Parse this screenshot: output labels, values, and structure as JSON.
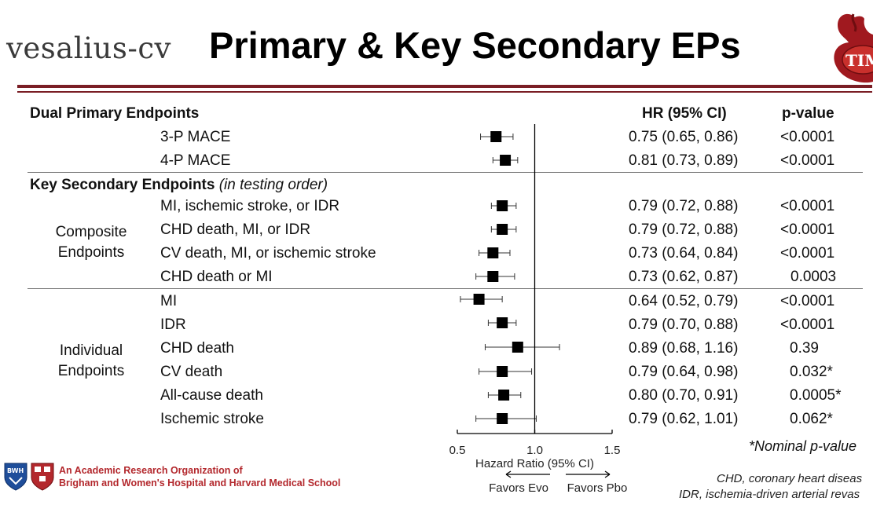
{
  "logo_text": "vesalius-cv",
  "title": "Primary & Key Secondary EPs",
  "timi_label": "TIMI",
  "headers": {
    "dual_primary": "Dual Primary Endpoints",
    "hr": "HR (95% CI)",
    "pvalue": "p-value",
    "key_secondary": "Key Secondary Endpoints",
    "key_secondary_note": "(in testing order)"
  },
  "groups": {
    "composite_line1": "Composite",
    "composite_line2": "Endpoints",
    "individual_line1": "Individual",
    "individual_line2": "Endpoints"
  },
  "nominal_note": "*Nominal p-value",
  "footer": {
    "line1": "An Academic Research Organization of",
    "line2": "Brigham and Women's Hospital and Harvard Medical School",
    "bwh": "BWH"
  },
  "abbreviations": {
    "line1": "CHD, coronary heart diseas",
    "line2": "IDR, ischemia-driven arterial revas"
  },
  "chart_data": {
    "type": "forest",
    "title": "Primary & Key Secondary EPs",
    "xlabel": "Hazard Ratio (95% CI)",
    "x_ticks": [
      0.5,
      1.0,
      1.5
    ],
    "x_tick_labels": [
      "0.5",
      "1.0",
      "1.5"
    ],
    "xlim": [
      0.5,
      1.5
    ],
    "reference_line": 1.0,
    "favors_left": "Favors Evo",
    "favors_right": "Favors Pbo",
    "rows": [
      {
        "label": "3-P MACE",
        "hr": 0.75,
        "lo": 0.65,
        "hi": 0.86,
        "hr_text": "0.75 (0.65, 0.86)",
        "p": "<0.0001"
      },
      {
        "label": "4-P MACE",
        "hr": 0.81,
        "lo": 0.73,
        "hi": 0.89,
        "hr_text": "0.81 (0.73, 0.89)",
        "p": "<0.0001"
      },
      {
        "label": "MI, ischemic stroke, or IDR",
        "hr": 0.79,
        "lo": 0.72,
        "hi": 0.88,
        "hr_text": "0.79 (0.72, 0.88)",
        "p": "<0.0001"
      },
      {
        "label": "CHD death, MI, or IDR",
        "hr": 0.79,
        "lo": 0.72,
        "hi": 0.88,
        "hr_text": "0.79 (0.72, 0.88)",
        "p": "<0.0001"
      },
      {
        "label": "CV death, MI, or ischemic stroke",
        "hr": 0.73,
        "lo": 0.64,
        "hi": 0.84,
        "hr_text": "0.73 (0.64, 0.84)",
        "p": "<0.0001"
      },
      {
        "label": "CHD death or MI",
        "hr": 0.73,
        "lo": 0.62,
        "hi": 0.87,
        "hr_text": "0.73 (0.62, 0.87)",
        "p": "0.0003"
      },
      {
        "label": "MI",
        "hr": 0.64,
        "lo": 0.52,
        "hi": 0.79,
        "hr_text": "0.64 (0.52, 0.79)",
        "p": "<0.0001"
      },
      {
        "label": "IDR",
        "hr": 0.79,
        "lo": 0.7,
        "hi": 0.88,
        "hr_text": "0.79 (0.70, 0.88)",
        "p": "<0.0001"
      },
      {
        "label": "CHD death",
        "hr": 0.89,
        "lo": 0.68,
        "hi": 1.16,
        "hr_text": "0.89 (0.68, 1.16)",
        "p": "0.39"
      },
      {
        "label": "CV death",
        "hr": 0.79,
        "lo": 0.64,
        "hi": 0.98,
        "hr_text": "0.79 (0.64, 0.98)",
        "p": "0.032*"
      },
      {
        "label": "All-cause death",
        "hr": 0.8,
        "lo": 0.7,
        "hi": 0.91,
        "hr_text": "0.80 (0.70, 0.91)",
        "p": "0.0005*"
      },
      {
        "label": "Ischemic stroke",
        "hr": 0.79,
        "lo": 0.62,
        "hi": 1.01,
        "hr_text": "0.79 (0.62, 1.01)",
        "p": "0.062*"
      }
    ]
  },
  "colors": {
    "brand": "#7a1e25",
    "accent_red": "#b3282d",
    "marker": "#000000"
  }
}
